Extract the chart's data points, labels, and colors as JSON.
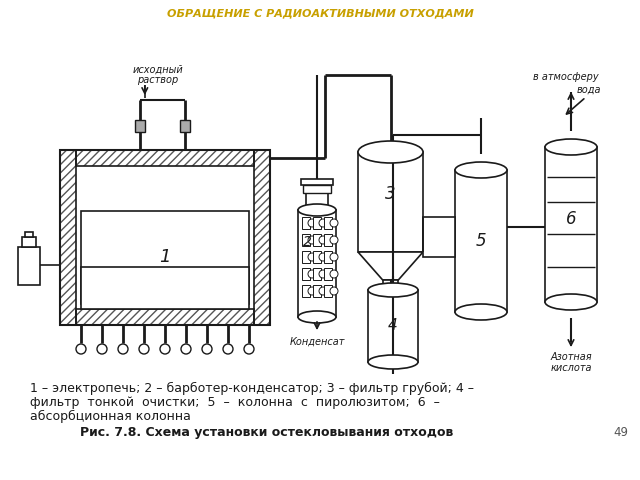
{
  "title": "ОБРАЩЕНИЕ С РАДИОАКТИВНЫМИ ОТХОДАМИ",
  "title_color": "#c8a000",
  "bg_color": "#ffffff",
  "line_color": "#1a1a1a",
  "caption_line1": "1 – электропечь; 2 – барботер-конденсатор; 3 – фильтр грубой; 4 –",
  "caption_line2": "фильтр  тонкой  очистки;  5  –  колонна  с  пиролюзитом;  6  –",
  "caption_line3": "абсорбционная колонна",
  "fig_caption": "Рис. 7.8. Схема установки остекловывания отходов",
  "page_num": "49",
  "label_ishodny": "исходный",
  "label_rastvor": "раствор",
  "label_kondensат": "Конденсат",
  "label_v_atmosferu": "в атмосферу",
  "label_voda": "вода",
  "label_azotnaya": "Азотная",
  "label_kislota": "кислота",
  "num1": "1",
  "num2": "2",
  "num3": "3",
  "num4": "4",
  "num5": "5",
  "num6": "6"
}
